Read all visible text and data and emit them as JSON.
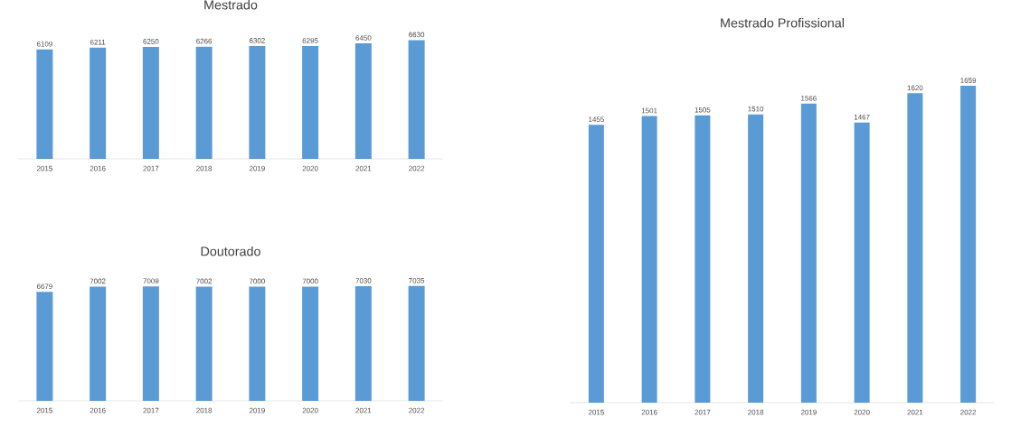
{
  "chart_data": [
    {
      "type": "bar",
      "title": "Mestrado",
      "categories": [
        "2015",
        "2016",
        "2017",
        "2018",
        "2019",
        "2020",
        "2021",
        "2022"
      ],
      "values": [
        6109,
        6211,
        6250,
        6266,
        6302,
        6295,
        6450,
        6630
      ],
      "color": "#5b9bd5",
      "data_labels": true
    },
    {
      "type": "bar",
      "title": "Doutorado",
      "categories": [
        "2015",
        "2016",
        "2017",
        "2018",
        "2019",
        "2020",
        "2021",
        "2022"
      ],
      "values": [
        6679,
        7002,
        7009,
        7002,
        7000,
        7000,
        7030,
        7035
      ],
      "color": "#5b9bd5",
      "data_labels": true
    },
    {
      "type": "bar",
      "title": "Mestrado Profissional",
      "categories": [
        "2015",
        "2016",
        "2017",
        "2018",
        "2019",
        "2020",
        "2021",
        "2022"
      ],
      "values": [
        1455,
        1501,
        1505,
        1510,
        1566,
        1467,
        1620,
        1659
      ],
      "color": "#5b9bd5",
      "data_labels": true
    }
  ]
}
